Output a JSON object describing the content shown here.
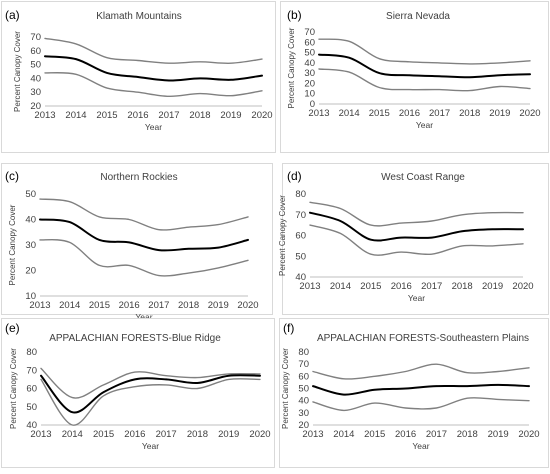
{
  "chart_data": [
    {
      "type": "line",
      "panel_label": "(a)",
      "title": "Klamath Mountains",
      "xlabel": "Year",
      "ylabel": "Percent Canopy Cover",
      "x": [
        2013,
        2014,
        2015,
        2016,
        2017,
        2018,
        2019,
        2020
      ],
      "x_ticks": [
        "2013",
        "2014",
        "2015",
        "2016",
        "2017",
        "2018",
        "2019",
        "2020"
      ],
      "ylim": [
        20,
        70
      ],
      "y_ticks": [
        20,
        30,
        40,
        50,
        60,
        70
      ],
      "series": [
        {
          "values": [
            69,
            65,
            55,
            53,
            51,
            52,
            51,
            54
          ],
          "color": "#808080"
        },
        {
          "values": [
            56,
            54,
            44,
            41,
            38.5,
            40,
            39,
            42
          ],
          "color": "#000000"
        },
        {
          "values": [
            44,
            43,
            33,
            30,
            27,
            29,
            27.5,
            31
          ],
          "color": "#808080"
        }
      ]
    },
    {
      "type": "line",
      "panel_label": "(b)",
      "title": "Sierra Nevada",
      "xlabel": "Year",
      "ylabel": "Percent Canopy Cover",
      "x": [
        2013,
        2014,
        2015,
        2016,
        2017,
        2018,
        2019,
        2020
      ],
      "x_ticks": [
        "2013",
        "2014",
        "2015",
        "2016",
        "2017",
        "2018",
        "2019",
        "2020"
      ],
      "ylim": [
        0,
        70
      ],
      "y_ticks": [
        0,
        10,
        20,
        30,
        40,
        50,
        60,
        70
      ],
      "series": [
        {
          "values": [
            63,
            61,
            44,
            41,
            40,
            39,
            40,
            42
          ],
          "color": "#808080"
        },
        {
          "values": [
            48,
            45,
            30,
            28,
            27,
            26,
            28,
            29
          ],
          "color": "#000000"
        },
        {
          "values": [
            34,
            31,
            16,
            14,
            14,
            13,
            17,
            15
          ],
          "color": "#808080"
        }
      ]
    },
    {
      "type": "line",
      "panel_label": "(c)",
      "title": "Northern Rockies",
      "xlabel": "Year",
      "ylabel": "Percent Canopy Cover",
      "x": [
        2013,
        2014,
        2015,
        2016,
        2017,
        2018,
        2019,
        2020
      ],
      "x_ticks": [
        "2013",
        "2014",
        "2015",
        "2016",
        "2017",
        "2018",
        "2019",
        "2020"
      ],
      "ylim": [
        10,
        50
      ],
      "y_ticks": [
        10,
        20,
        30,
        40,
        50
      ],
      "series": [
        {
          "values": [
            48,
            47,
            41,
            40,
            36,
            37,
            38,
            41
          ],
          "color": "#808080"
        },
        {
          "values": [
            40,
            39,
            32,
            31,
            28,
            28.5,
            29,
            32
          ],
          "color": "#000000"
        },
        {
          "values": [
            32,
            31,
            22,
            22,
            18,
            19,
            21,
            24
          ],
          "color": "#808080"
        }
      ]
    },
    {
      "type": "line",
      "panel_label": "(d)",
      "title": "West Coast Range",
      "xlabel": "Year",
      "ylabel": "Percent Canopy Cover",
      "x": [
        2013,
        2014,
        2015,
        2016,
        2017,
        2018,
        2019,
        2020
      ],
      "x_ticks": [
        "2013",
        "2014",
        "2015",
        "2016",
        "2017",
        "2018",
        "2019",
        "2020"
      ],
      "ylim": [
        40,
        80
      ],
      "y_ticks": [
        40,
        50,
        60,
        70,
        80
      ],
      "series": [
        {
          "values": [
            76,
            73,
            65,
            66,
            67,
            70,
            71,
            71
          ],
          "color": "#808080"
        },
        {
          "values": [
            71,
            67,
            58,
            59,
            59,
            62,
            63,
            63
          ],
          "color": "#000000"
        },
        {
          "values": [
            65,
            61,
            51,
            52,
            51,
            55,
            55,
            56
          ],
          "color": "#808080"
        }
      ]
    },
    {
      "type": "line",
      "panel_label": "(e)",
      "title": "APPALACHIAN FORESTS-Blue Ridge",
      "xlabel": "Year",
      "ylabel": "Percent Canopy Cover",
      "x": [
        2013,
        2014,
        2015,
        2016,
        2017,
        2018,
        2019,
        2020
      ],
      "x_ticks": [
        "2013",
        "2014",
        "2015",
        "2016",
        "2017",
        "2018",
        "2019",
        "2020"
      ],
      "ylim": [
        40,
        80
      ],
      "y_ticks": [
        40,
        50,
        60,
        70,
        80
      ],
      "series": [
        {
          "values": [
            71,
            55,
            62,
            69,
            67,
            66,
            68,
            68
          ],
          "color": "#808080"
        },
        {
          "values": [
            67,
            47,
            58,
            65,
            65,
            63,
            67,
            67
          ],
          "color": "#000000"
        },
        {
          "values": [
            65,
            40,
            56,
            61,
            62,
            60,
            65,
            65
          ],
          "color": "#808080"
        }
      ]
    },
    {
      "type": "line",
      "panel_label": "(f)",
      "title": "APPALACHIAN FORESTS-Southeastern Plains",
      "xlabel": "Year",
      "ylabel": "Percent Canopy Cover",
      "x": [
        2013,
        2014,
        2015,
        2016,
        2017,
        2018,
        2019,
        2020
      ],
      "x_ticks": [
        "2013",
        "2014",
        "2015",
        "2016",
        "2017",
        "2018",
        "2019",
        "2020"
      ],
      "ylim": [
        20,
        80
      ],
      "y_ticks": [
        20,
        30,
        40,
        50,
        60,
        70,
        80
      ],
      "series": [
        {
          "values": [
            64,
            58,
            60,
            64,
            70,
            63,
            64,
            67
          ],
          "color": "#808080"
        },
        {
          "values": [
            52,
            45,
            49,
            50,
            52,
            52,
            53,
            52
          ],
          "color": "#000000"
        },
        {
          "values": [
            39,
            32,
            38,
            34,
            34,
            42,
            41,
            40
          ],
          "color": "#808080"
        }
      ]
    }
  ]
}
